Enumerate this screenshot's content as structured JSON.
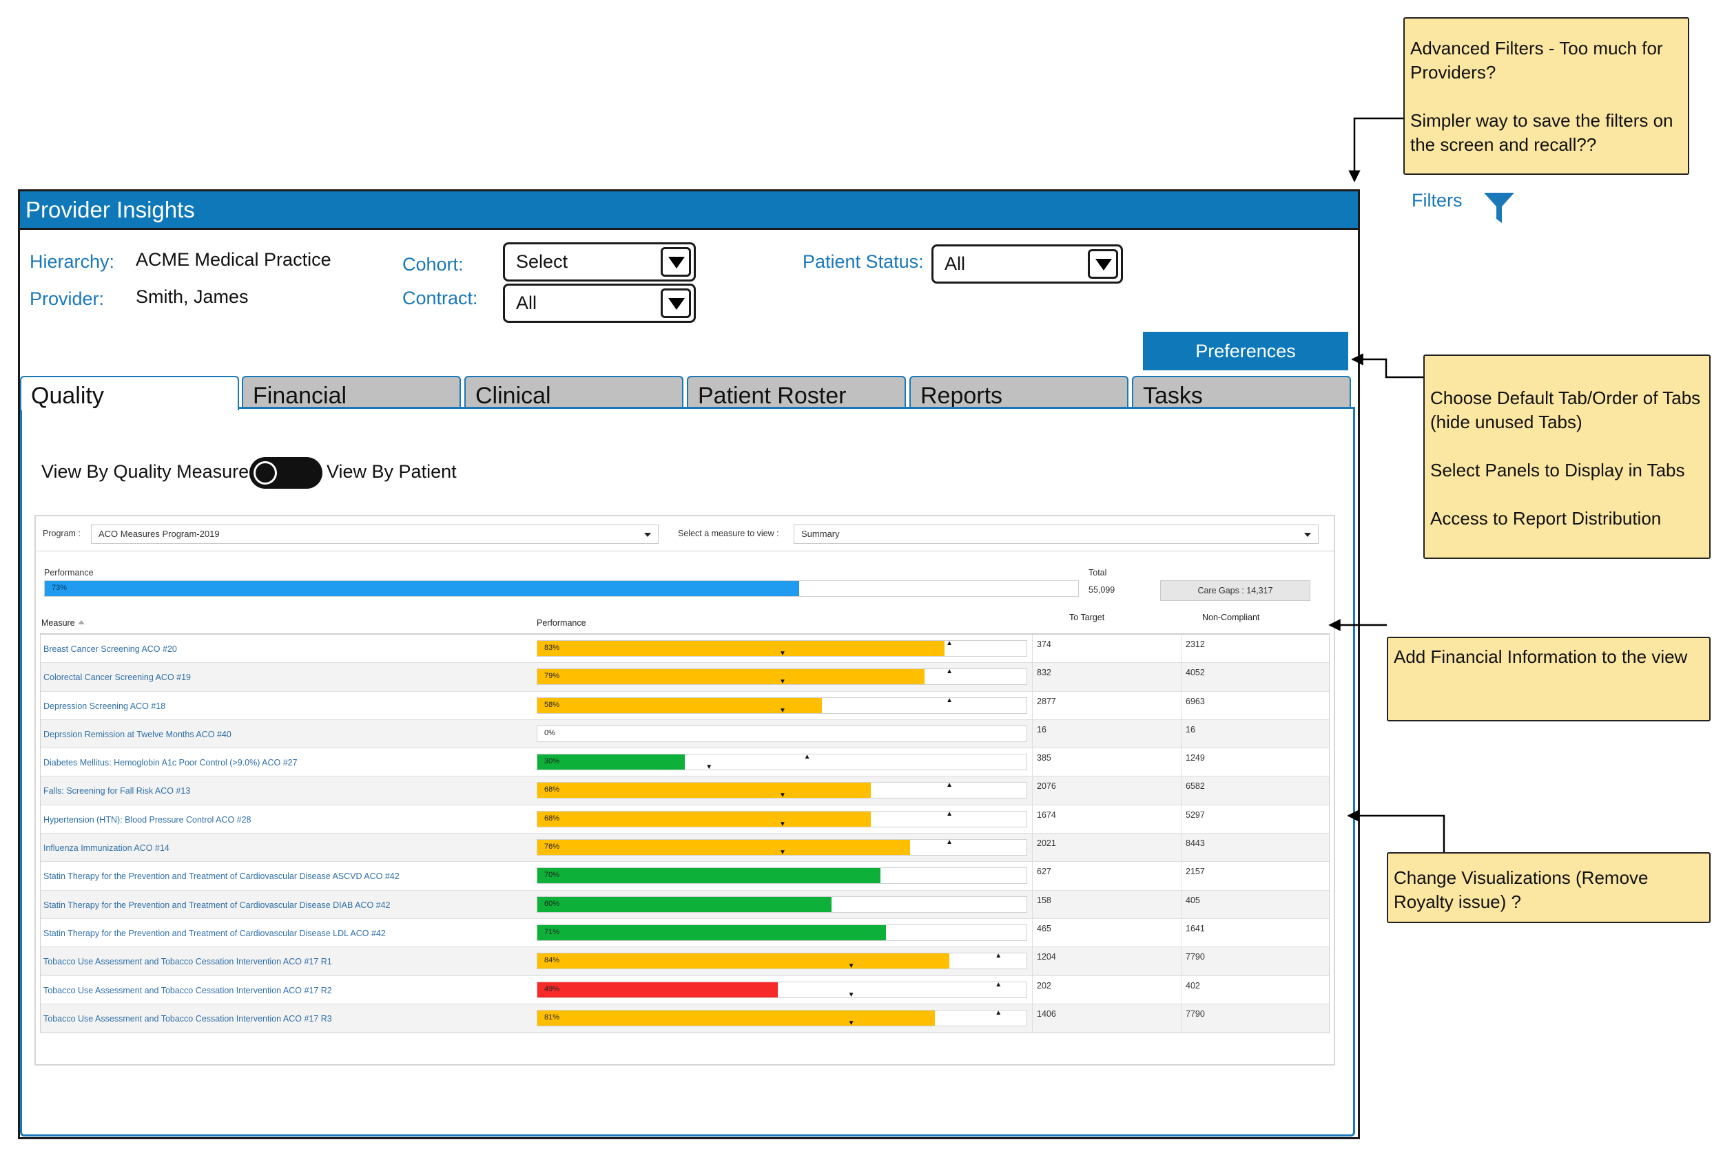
{
  "app": {
    "title": "Provider Insights"
  },
  "filters_area": {
    "hierarchy_label": "Hierarchy:",
    "hierarchy_value": "ACME Medical Practice",
    "provider_label": "Provider:",
    "provider_value": "Smith, James",
    "cohort_label": "Cohort:",
    "cohort_value": "Select",
    "contract_label": "Contract:",
    "contract_value": "All",
    "patient_status_label": "Patient Status:",
    "patient_status_value": "All"
  },
  "preferences_label": "Preferences",
  "tabs": [
    {
      "label": "Quality",
      "active": true
    },
    {
      "label": "Financial",
      "active": false
    },
    {
      "label": "Clinical",
      "active": false
    },
    {
      "label": "Patient Roster",
      "active": false
    },
    {
      "label": "Reports",
      "active": false
    },
    {
      "label": "Tasks",
      "active": false
    }
  ],
  "view_toggle": {
    "left_label": "View By Quality Measure",
    "right_label": "View By Patient"
  },
  "report": {
    "program_label": "Program :",
    "program_value": "ACO Measures Program-2019",
    "measure_select_label": "Select a measure to view :",
    "measure_select_value": "Summary",
    "performance_label": "Performance",
    "performance_value": "73%",
    "performance_fraction": 0.73,
    "total_label": "Total",
    "total_value": "55,099",
    "care_gaps": "Care Gaps : 14,317",
    "columns": {
      "measure": "Measure",
      "performance": "Performance",
      "to_target": "To Target",
      "non_compliant": "Non-Compliant"
    },
    "rows": [
      {
        "measure": "Breast Cancer Screening ACO #20",
        "perf": "83%",
        "value": 0.83,
        "color": "#ffbf00",
        "target": 0.84,
        "benchmark": 0.5,
        "to_target": "374",
        "non_compliant": "2312"
      },
      {
        "measure": "Colorectal Cancer Screening ACO #19",
        "perf": "79%",
        "value": 0.79,
        "color": "#ffbf00",
        "target": 0.84,
        "benchmark": 0.5,
        "to_target": "832",
        "non_compliant": "4052"
      },
      {
        "measure": "Depression Screening ACO #18",
        "perf": "58%",
        "value": 0.58,
        "color": "#ffbf00",
        "target": 0.84,
        "benchmark": 0.5,
        "to_target": "2877",
        "non_compliant": "6963"
      },
      {
        "measure": "Deprssion Remission at Twelve Months ACO #40",
        "perf": "0%",
        "value": 0.0,
        "color": "#ffbf00",
        "target": null,
        "benchmark": null,
        "to_target": "16",
        "non_compliant": "16"
      },
      {
        "measure": "Diabetes Mellitus: Hemoglobin A1c Poor Control (>9.0%) ACO #27",
        "perf": "30%",
        "value": 0.3,
        "color": "#0db139",
        "target": 0.55,
        "benchmark": 0.35,
        "to_target": "385",
        "non_compliant": "1249"
      },
      {
        "measure": "Falls: Screening for Fall Risk ACO #13",
        "perf": "68%",
        "value": 0.68,
        "color": "#ffbf00",
        "target": 0.84,
        "benchmark": 0.5,
        "to_target": "2076",
        "non_compliant": "6582"
      },
      {
        "measure": "Hypertension (HTN): Blood Pressure Control ACO #28",
        "perf": "68%",
        "value": 0.68,
        "color": "#ffbf00",
        "target": 0.84,
        "benchmark": 0.5,
        "to_target": "1674",
        "non_compliant": "5297"
      },
      {
        "measure": "Influenza Immunization ACO #14",
        "perf": "76%",
        "value": 0.76,
        "color": "#ffbf00",
        "target": 0.84,
        "benchmark": 0.5,
        "to_target": "2021",
        "non_compliant": "8443"
      },
      {
        "measure": "Statin Therapy for the Prevention and Treatment of Cardiovascular Disease ASCVD ACO #42",
        "perf": "70%",
        "value": 0.7,
        "color": "#0db139",
        "target": null,
        "benchmark": null,
        "to_target": "627",
        "non_compliant": "2157"
      },
      {
        "measure": "Statin Therapy for the Prevention and Treatment of Cardiovascular Disease DIAB ACO #42",
        "perf": "60%",
        "value": 0.6,
        "color": "#0db139",
        "target": null,
        "benchmark": null,
        "to_target": "158",
        "non_compliant": "405"
      },
      {
        "measure": "Statin Therapy for the Prevention and Treatment of Cardiovascular Disease LDL ACO #42",
        "perf": "71%",
        "value": 0.71,
        "color": "#0db139",
        "target": null,
        "benchmark": null,
        "to_target": "465",
        "non_compliant": "1641"
      },
      {
        "measure": "Tobacco Use Assessment and Tobacco Cessation Intervention ACO #17 R1",
        "perf": "84%",
        "value": 0.84,
        "color": "#ffbf00",
        "target": 0.94,
        "benchmark": 0.64,
        "to_target": "1204",
        "non_compliant": "7790"
      },
      {
        "measure": "Tobacco Use Assessment and Tobacco Cessation Intervention ACO #17 R2",
        "perf": "49%",
        "value": 0.49,
        "color": "#f72a2a",
        "target": 0.94,
        "benchmark": 0.64,
        "to_target": "202",
        "non_compliant": "402"
      },
      {
        "measure": "Tobacco Use Assessment and Tobacco Cessation Intervention ACO #17 R3",
        "perf": "81%",
        "value": 0.81,
        "color": "#ffbf00",
        "target": 0.94,
        "benchmark": 0.64,
        "to_target": "1406",
        "non_compliant": "7790"
      }
    ]
  },
  "filters_link": "Filters",
  "notes": {
    "advanced_filters": [
      "Advanced Filters - Too much for",
      "Providers?",
      "",
      "Simpler way to save the filters on",
      "the screen and recall??"
    ],
    "preferences": [
      "Choose Default Tab/Order of Tabs",
      "(hide unused Tabs)",
      "",
      "Select Panels to Display in Tabs",
      "",
      "Access to Report Distribution"
    ],
    "financial": [
      "Add Financial Information to the view"
    ],
    "visualizations": [
      "Change Visualizations (Remove",
      "Royalty issue) ?"
    ]
  }
}
